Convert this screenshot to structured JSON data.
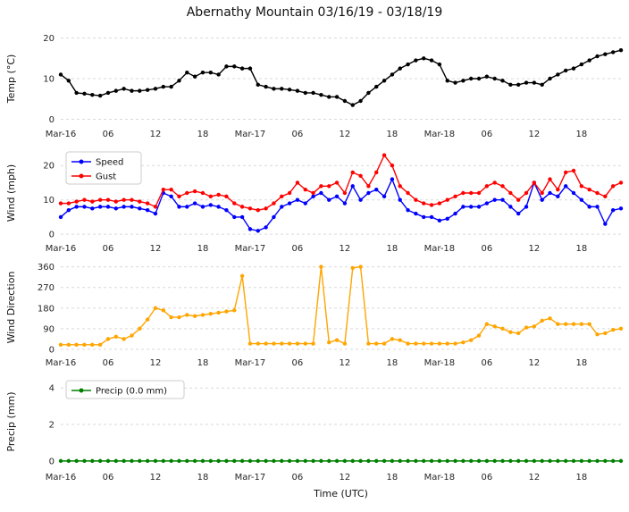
{
  "title": "Abernathy Mountain 03/16/19 - 03/18/19",
  "chart_data": {
    "type": "line",
    "title": "Abernathy Mountain 03/16/19 - 03/18/19",
    "xlabel": "Time (UTC)",
    "x_range": [
      0,
      71
    ],
    "x_unit": "hours since Mar-16 00:00 UTC",
    "x_tick_positions": [
      0,
      6,
      12,
      18,
      24,
      30,
      36,
      42,
      48,
      54,
      60,
      66
    ],
    "x_tick_labels": [
      "Mar-16",
      "06",
      "12",
      "18",
      "Mar-17",
      "06",
      "12",
      "18",
      "Mar-18",
      "06",
      "12",
      "18"
    ],
    "grid": "horizontal-dashed",
    "subplots": [
      {
        "id": "temp",
        "ylabel": "Temp (°C)",
        "yticks": [
          0,
          10,
          20
        ],
        "ylim": [
          -1,
          21
        ],
        "legend": false,
        "series": [
          {
            "name": "Temp",
            "color": "#000000",
            "values": [
              11,
              9.5,
              6.5,
              6.3,
              6,
              5.8,
              6.5,
              7,
              7.5,
              7,
              7,
              7.2,
              7.5,
              8,
              8,
              9.5,
              11.5,
              10.5,
              11.5,
              11.5,
              11,
              13,
              13,
              12.5,
              12.5,
              8.5,
              8,
              7.5,
              7.5,
              7.3,
              7,
              6.5,
              6.5,
              6,
              5.5,
              5.5,
              4.5,
              3.5,
              4.5,
              6.5,
              8,
              9.5,
              11,
              12.5,
              13.5,
              14.5,
              15,
              14.5,
              13.5,
              9.5,
              9,
              9.5,
              10,
              10,
              10.5,
              10,
              9.5,
              8.5,
              8.5,
              9,
              9,
              8.5,
              10,
              11,
              12,
              12.5,
              13.5,
              14.5,
              15.5,
              16,
              16.5,
              17
            ]
          }
        ]
      },
      {
        "id": "wind",
        "ylabel": "Wind (mph)",
        "yticks": [
          0,
          10,
          20
        ],
        "ylim": [
          -1,
          25
        ],
        "legend": true,
        "series": [
          {
            "name": "Speed",
            "color": "#0000ff",
            "values": [
              5,
              7,
              8,
              8,
              7.5,
              8,
              8,
              7.5,
              8,
              8,
              7.5,
              7,
              6,
              12,
              11,
              8,
              8,
              9,
              8,
              8.5,
              8,
              7,
              5,
              5,
              1.5,
              1,
              2,
              5,
              8,
              9,
              10,
              9,
              11,
              12,
              10,
              11,
              9,
              14,
              10,
              12,
              13,
              11,
              16,
              10,
              7,
              6,
              5,
              5,
              4,
              4.5,
              6,
              8,
              8,
              8,
              9,
              10,
              10,
              8,
              6,
              8,
              15,
              10,
              12,
              11,
              14,
              12,
              10,
              8,
              8,
              3,
              7,
              7.5
            ]
          },
          {
            "name": "Gust",
            "color": "#ff0000",
            "values": [
              9,
              9,
              9.5,
              10,
              9.5,
              10,
              10,
              9.5,
              10,
              10,
              9.5,
              9,
              8,
              13,
              13,
              11,
              12,
              12.5,
              12,
              11,
              11.5,
              11,
              9,
              8,
              7.5,
              7,
              7.5,
              9,
              11,
              12,
              15,
              13,
              12,
              14,
              14,
              15,
              12,
              18,
              17,
              14,
              18,
              23,
              20,
              14,
              12,
              10,
              9,
              8.5,
              9,
              10,
              11,
              12,
              12,
              12,
              14,
              15,
              14,
              12,
              10,
              12,
              15,
              12,
              16,
              13,
              18,
              18.5,
              14,
              13,
              12,
              11,
              14,
              15
            ]
          }
        ]
      },
      {
        "id": "wind-direction",
        "ylabel": "Wind Direction",
        "yticks": [
          0,
          90,
          180,
          270,
          360
        ],
        "ylim": [
          -12,
          378
        ],
        "legend": false,
        "series": [
          {
            "name": "Wind Direction",
            "color": "#ffa500",
            "values": [
              20,
              20,
              20,
              20,
              20,
              20,
              45,
              55,
              45,
              60,
              90,
              130,
              180,
              170,
              140,
              140,
              150,
              145,
              150,
              155,
              160,
              165,
              170,
              320,
              25,
              25,
              25,
              25,
              25,
              25,
              25,
              25,
              25,
              360,
              30,
              40,
              25,
              355,
              360,
              25,
              25,
              25,
              45,
              40,
              25,
              25,
              25,
              25,
              25,
              25,
              25,
              30,
              40,
              60,
              110,
              100,
              90,
              75,
              70,
              95,
              100,
              125,
              135,
              110,
              110,
              110,
              110,
              110,
              65,
              70,
              85,
              90
            ]
          }
        ]
      },
      {
        "id": "precip",
        "ylabel": "Precip (mm)",
        "yticks": [
          0,
          2,
          4
        ],
        "ylim": [
          -0.3,
          4.6
        ],
        "legend": true,
        "series": [
          {
            "name": "Precip (0.0 mm)",
            "color": "#008000",
            "values": [
              0,
              0,
              0,
              0,
              0,
              0,
              0,
              0,
              0,
              0,
              0,
              0,
              0,
              0,
              0,
              0,
              0,
              0,
              0,
              0,
              0,
              0,
              0,
              0,
              0,
              0,
              0,
              0,
              0,
              0,
              0,
              0,
              0,
              0,
              0,
              0,
              0,
              0,
              0,
              0,
              0,
              0,
              0,
              0,
              0,
              0,
              0,
              0,
              0,
              0,
              0,
              0,
              0,
              0,
              0,
              0,
              0,
              0,
              0,
              0,
              0,
              0,
              0,
              0,
              0,
              0,
              0,
              0,
              0,
              0,
              0,
              0
            ]
          }
        ]
      }
    ]
  }
}
